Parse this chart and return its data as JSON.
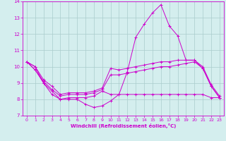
{
  "xlabel": "Windchill (Refroidissement éolien,°C)",
  "background_color": "#d4eeee",
  "grid_color": "#aacccc",
  "line_color": "#cc00cc",
  "xlim": [
    -0.5,
    23.5
  ],
  "ylim": [
    7,
    14
  ],
  "xticks": [
    0,
    1,
    2,
    3,
    4,
    5,
    6,
    7,
    8,
    9,
    10,
    11,
    12,
    13,
    14,
    15,
    16,
    17,
    18,
    19,
    20,
    21,
    22,
    23
  ],
  "yticks": [
    7,
    8,
    9,
    10,
    11,
    12,
    13,
    14
  ],
  "series": {
    "line1": {
      "x": [
        0,
        1,
        2,
        3,
        4,
        5,
        6,
        7,
        8,
        9,
        10,
        11,
        12,
        13,
        14,
        15,
        16,
        17,
        18,
        19,
        20,
        21,
        22,
        23
      ],
      "y": [
        10.3,
        10.0,
        9.0,
        8.3,
        8.0,
        8.0,
        8.0,
        7.7,
        7.5,
        7.6,
        7.9,
        8.3,
        9.7,
        11.8,
        12.6,
        13.3,
        13.8,
        12.5,
        11.9,
        10.4,
        10.4,
        9.9,
        8.8,
        8.1
      ]
    },
    "line2": {
      "x": [
        0,
        1,
        2,
        3,
        4,
        5,
        6,
        7,
        8,
        9,
        10,
        11,
        12,
        13,
        14,
        15,
        16,
        17,
        18,
        19,
        20,
        21,
        22,
        23
      ],
      "y": [
        10.3,
        10.0,
        9.2,
        8.8,
        8.3,
        8.4,
        8.4,
        8.4,
        8.5,
        8.7,
        9.9,
        9.8,
        9.9,
        10.0,
        10.1,
        10.2,
        10.3,
        10.3,
        10.4,
        10.4,
        10.4,
        10.0,
        8.9,
        8.2
      ]
    },
    "line3": {
      "x": [
        0,
        1,
        2,
        3,
        4,
        5,
        6,
        7,
        8,
        9,
        10,
        11,
        12,
        13,
        14,
        15,
        16,
        17,
        18,
        19,
        20,
        21,
        22,
        23
      ],
      "y": [
        10.3,
        9.8,
        9.1,
        8.6,
        8.2,
        8.3,
        8.3,
        8.3,
        8.4,
        8.6,
        9.5,
        9.5,
        9.6,
        9.7,
        9.8,
        9.9,
        10.0,
        10.0,
        10.1,
        10.2,
        10.3,
        9.9,
        8.8,
        8.1
      ]
    },
    "line4": {
      "x": [
        0,
        1,
        2,
        3,
        4,
        5,
        6,
        7,
        8,
        9,
        10,
        11,
        12,
        13,
        14,
        15,
        16,
        17,
        18,
        19,
        20,
        21,
        22,
        23
      ],
      "y": [
        10.3,
        9.8,
        9.0,
        8.5,
        8.0,
        8.1,
        8.1,
        8.1,
        8.2,
        8.5,
        8.3,
        8.3,
        8.3,
        8.3,
        8.3,
        8.3,
        8.3,
        8.3,
        8.3,
        8.3,
        8.3,
        8.3,
        8.1,
        8.1
      ]
    }
  }
}
